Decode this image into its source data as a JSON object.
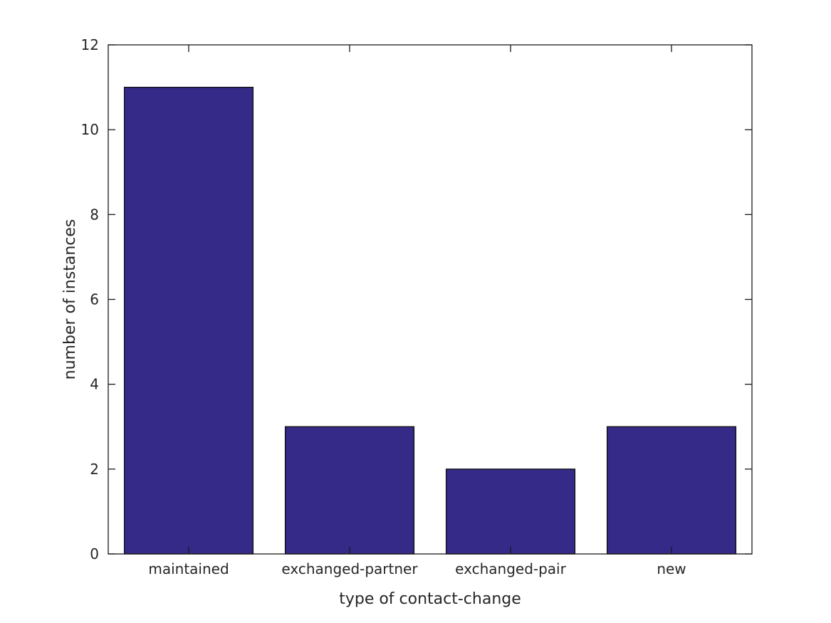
{
  "chart_data": {
    "type": "bar",
    "title": "",
    "categories": [
      "maintained",
      "exchanged-partner",
      "exchanged-pair",
      "new"
    ],
    "values": [
      11,
      3,
      2,
      3
    ],
    "xlabel": "type of contact-change",
    "ylabel": "number of instances",
    "ylim": [
      0,
      12
    ],
    "yticks": [
      0,
      2,
      4,
      6,
      8,
      10,
      12
    ],
    "grid": false,
    "legend": null,
    "box": true,
    "tick_direction": "in",
    "bar_width_fraction": 0.8,
    "colors": {
      "bar_fill": "#352a87",
      "bar_edge": "#0d0d0d",
      "axis": "#1a1a1a",
      "text": "#262626",
      "background": "#ffffff"
    }
  }
}
